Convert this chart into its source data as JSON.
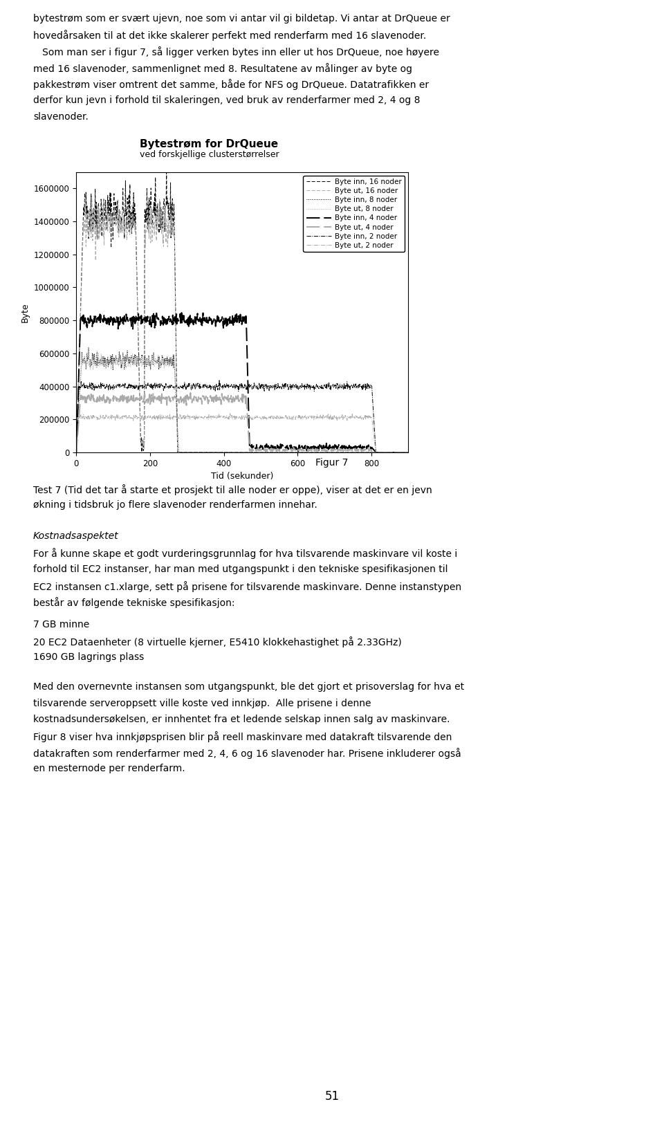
{
  "title": "Bytestrøm for DrQueue",
  "subtitle": "ved forskjellige clusterstørrelser",
  "xlabel": "Tid (sekunder)",
  "ylabel": "Byte",
  "xlim": [
    0,
    900
  ],
  "ylim": [
    0,
    1700000
  ],
  "yticks": [
    0,
    200000,
    400000,
    600000,
    800000,
    1000000,
    1200000,
    1400000,
    1600000
  ],
  "xticks": [
    0,
    200,
    400,
    600,
    800
  ],
  "legend_labels": [
    "Byte inn, 16 noder",
    "Byte ut, 16 noder",
    "Byte inn, 8 noder",
    "Byte ut, 8 noder",
    "Byte inn, 4 noder",
    "Byte ut, 4 noder",
    "Byte inn, 2 noder",
    "Byte ut, 2 noder"
  ],
  "bg_color": "#ffffff",
  "line_color": "#000000",
  "line_color_gray": "#aaaaaa",
  "seed": 42,
  "top_text_line1": "bytestrøm som er svært ujevn, noe som vi antar vil gi bildetap. Vi antar at DrQueue er",
  "top_text_line2": "hovedårsaken til at det ikke skalerer perfekt med renderfarm med 16 slavenoder.",
  "top_text_line3": "   Som man ser i figur 7, så ligger verken bytes inn eller ut hos DrQueue, noe høyere",
  "top_text_line4": "med 16 slavenoder, sammenlignet med 8. Resultatene av målinger av byte og",
  "top_text_line5": "pakkestrøm viser omtrent det samme, både for NFS og DrQueue. Datatrafikken er",
  "top_text_line6": "derfor kun jevn i forhold til skaleringen, ved bruk av renderfarmer med 2, 4 og 8",
  "top_text_line7": "slavenoder.",
  "figur_caption": "Figur 7",
  "test7_line1": "Test 7 (Tid det tar å starte et prosjekt til alle noder er oppe), viser at det er en jevn",
  "test7_line2": "økning i tidsbruk jo flere slavenoder renderfarmen innehar.",
  "kost_header": "Kostnadsaspektet",
  "kost_line1": "For å kunne skape et godt vurderingsgrunnlag for hva tilsvarende maskinvare vil koste i",
  "kost_line2": "forhold til EC2 instanser, har man med utgangspunkt i den tekniske spesifikasjonen til",
  "kost_line3": "EC2 instansen c1.xlarge, sett på prisene for tilsvarende maskinvare. Denne instanstypen",
  "kost_line4": "består av følgende tekniske spesifikasjon:",
  "spec_line1": "7 GB minne",
  "spec_line2": "20 EC2 Dataenheter (8 virtuelle kjerner, E5410 klokkehastighet på 2.33GHz)",
  "spec_line3": "1690 GB lagrings plass",
  "med_line1": "Med den overnevnte instansen som utgangspunkt, ble det gjort et prisoverslag for hva et",
  "med_line2": "tilsvarende serveroppsett ville koste ved innkjøp.  Alle prisene i denne",
  "med_line3": "kostnadsundersøkelsen, er innhentet fra et ledende selskap innen salg av maskinvare.",
  "med_line4": "Figur 8 viser hva innkjøpsprisen blir på reell maskinvare med datakraft tilsvarende den",
  "med_line5": "datakraften som renderfarmer med 2, 4, 6 og 16 slavenoder har. Prisene inkluderer også",
  "med_line6": "en mesternode per renderfarm.",
  "page_num": "51"
}
